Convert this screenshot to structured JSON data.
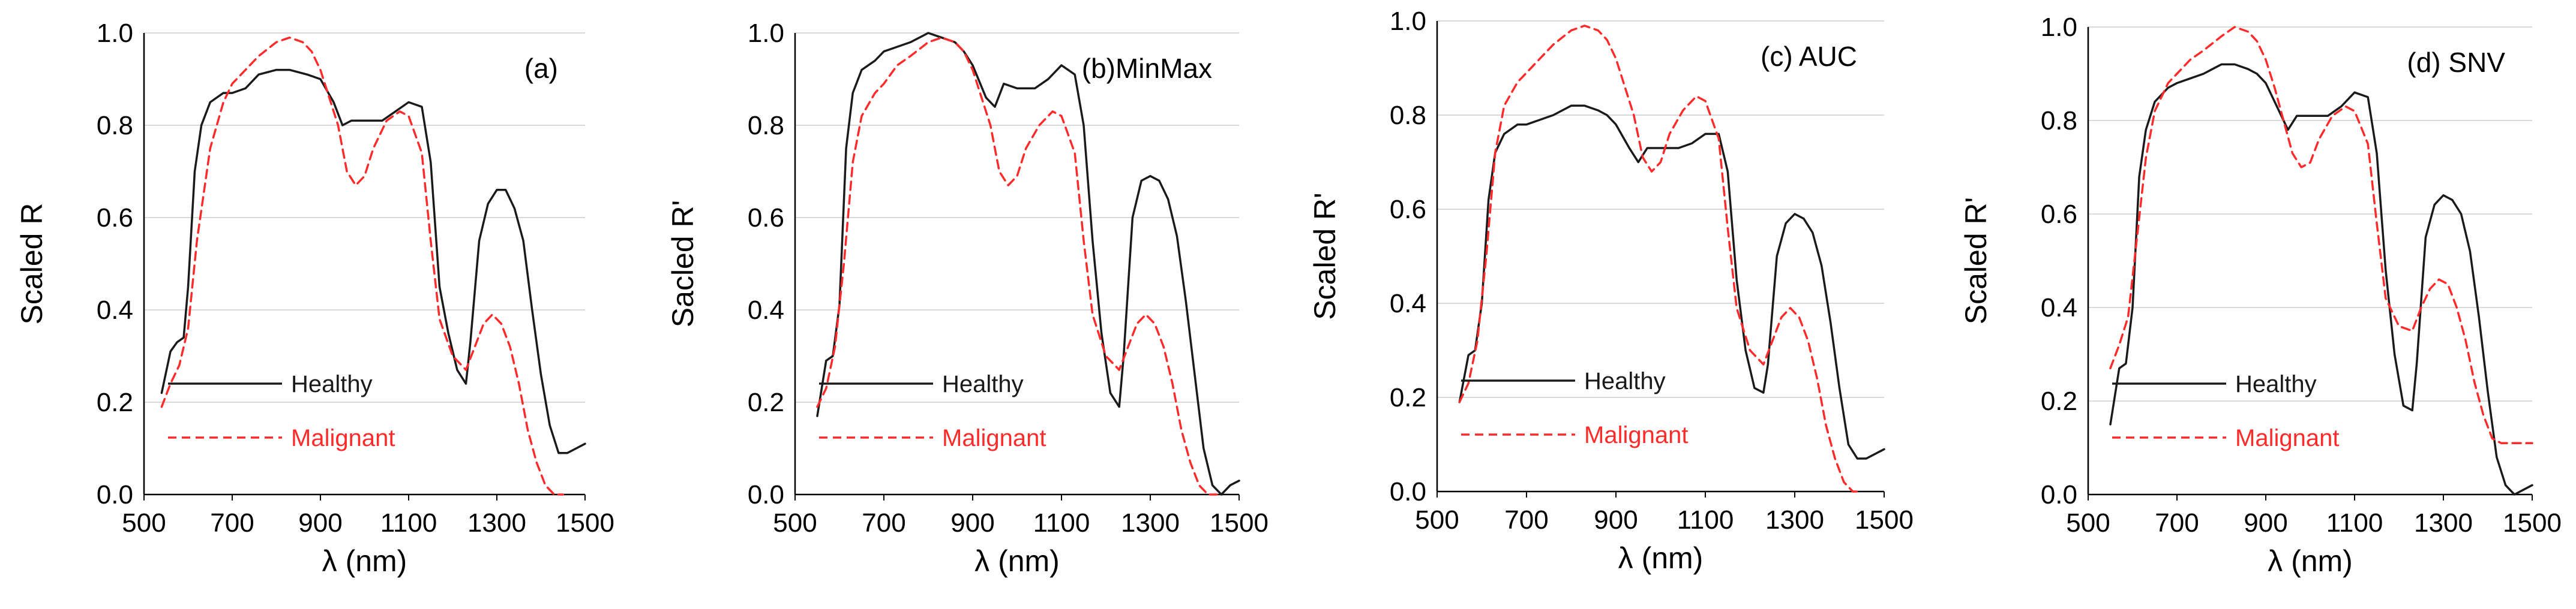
{
  "colors": {
    "healthy": "#1a1a1a",
    "malignant": "#ff2a2a",
    "axis": "#000000",
    "grid": "#d9d9d9"
  },
  "chart_data": [
    {
      "type": "line",
      "panel_label": "(a)",
      "xlabel": "λ (nm)",
      "ylabel": "Scaled R",
      "xlim": [
        500,
        1500
      ],
      "ylim": [
        0,
        1.0
      ],
      "xticks": [
        "500",
        "700",
        "900",
        "1100",
        "1300",
        "1500"
      ],
      "yticks": [
        "0.0",
        "0.2",
        "0.4",
        "0.6",
        "0.8",
        "1.0"
      ],
      "legend": {
        "healthy": "Healthy",
        "malignant": "Malignant",
        "placement": "bottom-left"
      },
      "series": [
        {
          "name": "Healthy",
          "style": "solid",
          "x": [
            540,
            560,
            575,
            590,
            600,
            615,
            630,
            650,
            680,
            700,
            730,
            760,
            800,
            830,
            870,
            900,
            930,
            950,
            970,
            1000,
            1040,
            1070,
            1100,
            1130,
            1150,
            1170,
            1190,
            1210,
            1230,
            1240,
            1260,
            1280,
            1300,
            1320,
            1340,
            1360,
            1380,
            1400,
            1420,
            1440,
            1460,
            1480,
            1500
          ],
          "y": [
            0.22,
            0.31,
            0.33,
            0.34,
            0.45,
            0.7,
            0.8,
            0.85,
            0.87,
            0.87,
            0.88,
            0.91,
            0.92,
            0.92,
            0.91,
            0.9,
            0.85,
            0.8,
            0.81,
            0.81,
            0.81,
            0.83,
            0.85,
            0.84,
            0.72,
            0.45,
            0.35,
            0.27,
            0.24,
            0.33,
            0.55,
            0.63,
            0.66,
            0.66,
            0.62,
            0.55,
            0.4,
            0.26,
            0.15,
            0.09,
            0.09,
            0.1,
            0.11
          ]
        },
        {
          "name": "Malignant",
          "style": "dashed",
          "x": [
            540,
            560,
            580,
            600,
            620,
            650,
            680,
            700,
            730,
            760,
            800,
            830,
            860,
            880,
            900,
            920,
            940,
            960,
            980,
            1000,
            1020,
            1050,
            1080,
            1100,
            1130,
            1150,
            1170,
            1200,
            1230,
            1250,
            1270,
            1290,
            1310,
            1330,
            1350,
            1370,
            1390,
            1410,
            1430,
            1450
          ],
          "y": [
            0.19,
            0.24,
            0.28,
            0.36,
            0.55,
            0.75,
            0.85,
            0.89,
            0.92,
            0.95,
            0.98,
            0.99,
            0.98,
            0.96,
            0.92,
            0.86,
            0.8,
            0.7,
            0.67,
            0.69,
            0.75,
            0.81,
            0.83,
            0.82,
            0.74,
            0.55,
            0.38,
            0.3,
            0.27,
            0.32,
            0.37,
            0.39,
            0.37,
            0.32,
            0.24,
            0.14,
            0.07,
            0.02,
            0.0,
            0.0
          ]
        }
      ]
    },
    {
      "type": "line",
      "panel_label": "(b)MinMax",
      "xlabel": "λ (nm)",
      "ylabel": "Sacled R'",
      "xlim": [
        500,
        1500
      ],
      "ylim": [
        0,
        1.0
      ],
      "xticks": [
        "500",
        "700",
        "900",
        "1100",
        "1300",
        "1500"
      ],
      "yticks": [
        "0.0",
        "0.2",
        "0.4",
        "0.6",
        "0.8",
        "1.0"
      ],
      "legend": {
        "healthy": "Healthy",
        "malignant": "Malignant",
        "placement": "bottom-left"
      },
      "series": [
        {
          "name": "Healthy",
          "style": "solid",
          "x": [
            550,
            570,
            585,
            600,
            615,
            630,
            650,
            680,
            700,
            730,
            760,
            800,
            830,
            860,
            880,
            900,
            930,
            950,
            970,
            1000,
            1040,
            1070,
            1100,
            1130,
            1150,
            1170,
            1190,
            1210,
            1230,
            1240,
            1260,
            1280,
            1300,
            1320,
            1340,
            1360,
            1380,
            1400,
            1420,
            1440,
            1460,
            1480,
            1500
          ],
          "y": [
            0.17,
            0.29,
            0.3,
            0.41,
            0.75,
            0.87,
            0.92,
            0.94,
            0.96,
            0.97,
            0.98,
            1.0,
            0.99,
            0.98,
            0.96,
            0.93,
            0.86,
            0.84,
            0.89,
            0.88,
            0.88,
            0.9,
            0.93,
            0.91,
            0.8,
            0.55,
            0.35,
            0.22,
            0.19,
            0.3,
            0.6,
            0.68,
            0.69,
            0.68,
            0.64,
            0.56,
            0.42,
            0.26,
            0.1,
            0.02,
            0.0,
            0.02,
            0.03
          ]
        },
        {
          "name": "Malignant",
          "style": "dashed",
          "x": [
            550,
            570,
            590,
            610,
            630,
            650,
            680,
            700,
            730,
            760,
            800,
            830,
            860,
            880,
            900,
            920,
            940,
            960,
            980,
            1000,
            1020,
            1050,
            1080,
            1100,
            1130,
            1150,
            1170,
            1200,
            1230,
            1250,
            1270,
            1290,
            1310,
            1330,
            1350,
            1370,
            1390,
            1410,
            1430,
            1450
          ],
          "y": [
            0.19,
            0.23,
            0.32,
            0.5,
            0.72,
            0.82,
            0.87,
            0.89,
            0.93,
            0.95,
            0.98,
            0.99,
            0.98,
            0.96,
            0.92,
            0.86,
            0.8,
            0.7,
            0.67,
            0.69,
            0.75,
            0.8,
            0.83,
            0.82,
            0.74,
            0.55,
            0.39,
            0.3,
            0.27,
            0.32,
            0.37,
            0.39,
            0.37,
            0.32,
            0.24,
            0.14,
            0.07,
            0.02,
            0.0,
            0.0
          ]
        }
      ]
    },
    {
      "type": "line",
      "panel_label": "(c) AUC",
      "xlabel": "λ (nm)",
      "ylabel": "Scaled R'",
      "xlim": [
        500,
        1500
      ],
      "ylim": [
        0,
        1.0
      ],
      "xticks": [
        "500",
        "700",
        "900",
        "1100",
        "1300",
        "1500"
      ],
      "yticks": [
        "0.0",
        "0.2",
        "0.4",
        "0.6",
        "0.8",
        "1.0"
      ],
      "legend": {
        "healthy": "Healthy",
        "malignant": "Malignant",
        "placement": "bottom-left"
      },
      "series": [
        {
          "name": "Healthy",
          "style": "solid",
          "x": [
            550,
            570,
            585,
            600,
            615,
            630,
            650,
            680,
            700,
            730,
            760,
            800,
            830,
            860,
            880,
            900,
            930,
            950,
            970,
            1000,
            1040,
            1070,
            1100,
            1130,
            1150,
            1170,
            1190,
            1210,
            1230,
            1240,
            1260,
            1280,
            1300,
            1320,
            1340,
            1360,
            1380,
            1400,
            1420,
            1440,
            1460,
            1480,
            1500
          ],
          "y": [
            0.19,
            0.29,
            0.3,
            0.4,
            0.62,
            0.72,
            0.76,
            0.78,
            0.78,
            0.79,
            0.8,
            0.82,
            0.82,
            0.81,
            0.8,
            0.78,
            0.73,
            0.7,
            0.73,
            0.73,
            0.73,
            0.74,
            0.76,
            0.76,
            0.68,
            0.45,
            0.3,
            0.22,
            0.21,
            0.27,
            0.5,
            0.57,
            0.59,
            0.58,
            0.55,
            0.48,
            0.36,
            0.22,
            0.1,
            0.07,
            0.07,
            0.08,
            0.09
          ]
        },
        {
          "name": "Malignant",
          "style": "dashed",
          "x": [
            550,
            570,
            590,
            610,
            630,
            650,
            680,
            700,
            730,
            760,
            800,
            830,
            860,
            880,
            900,
            920,
            940,
            960,
            980,
            1000,
            1020,
            1050,
            1080,
            1100,
            1130,
            1150,
            1170,
            1200,
            1230,
            1250,
            1270,
            1290,
            1310,
            1330,
            1350,
            1370,
            1390,
            1410,
            1430,
            1450
          ],
          "y": [
            0.19,
            0.23,
            0.32,
            0.5,
            0.72,
            0.82,
            0.87,
            0.89,
            0.92,
            0.95,
            0.98,
            0.99,
            0.98,
            0.96,
            0.92,
            0.86,
            0.8,
            0.71,
            0.68,
            0.7,
            0.76,
            0.81,
            0.84,
            0.83,
            0.75,
            0.56,
            0.39,
            0.3,
            0.27,
            0.32,
            0.37,
            0.39,
            0.37,
            0.32,
            0.24,
            0.14,
            0.07,
            0.02,
            0.0,
            0.0
          ]
        }
      ]
    },
    {
      "type": "line",
      "panel_label": "(d) SNV",
      "xlabel": "λ (nm)",
      "ylabel": "Scaled R'",
      "xlim": [
        500,
        1500
      ],
      "ylim": [
        0,
        1.0
      ],
      "xticks": [
        "500",
        "700",
        "900",
        "1100",
        "1300",
        "1500"
      ],
      "yticks": [
        "0.0",
        "0.2",
        "0.4",
        "0.6",
        "0.8",
        "1.0"
      ],
      "legend": {
        "healthy": "Healthy",
        "malignant": "Malignant",
        "placement": "bottom-left"
      },
      "series": [
        {
          "name": "Healthy",
          "style": "solid",
          "x": [
            550,
            570,
            585,
            600,
            615,
            630,
            650,
            680,
            700,
            730,
            760,
            800,
            830,
            860,
            880,
            900,
            930,
            950,
            970,
            1000,
            1040,
            1070,
            1100,
            1130,
            1150,
            1170,
            1190,
            1210,
            1230,
            1240,
            1260,
            1280,
            1300,
            1320,
            1340,
            1360,
            1380,
            1400,
            1420,
            1440,
            1460,
            1480,
            1500
          ],
          "y": [
            0.15,
            0.27,
            0.28,
            0.4,
            0.68,
            0.78,
            0.84,
            0.87,
            0.88,
            0.89,
            0.9,
            0.92,
            0.92,
            0.91,
            0.9,
            0.88,
            0.82,
            0.78,
            0.81,
            0.81,
            0.81,
            0.83,
            0.86,
            0.85,
            0.73,
            0.48,
            0.3,
            0.19,
            0.18,
            0.28,
            0.55,
            0.62,
            0.64,
            0.63,
            0.6,
            0.52,
            0.38,
            0.22,
            0.08,
            0.02,
            0.0,
            0.01,
            0.02
          ]
        },
        {
          "name": "Malignant",
          "style": "dashed",
          "x": [
            550,
            570,
            590,
            610,
            630,
            650,
            680,
            700,
            730,
            760,
            800,
            830,
            860,
            880,
            900,
            920,
            940,
            960,
            980,
            1000,
            1020,
            1050,
            1080,
            1100,
            1130,
            1150,
            1170,
            1200,
            1230,
            1250,
            1270,
            1290,
            1310,
            1330,
            1350,
            1370,
            1390,
            1410,
            1430,
            1450,
            1470,
            1500
          ],
          "y": [
            0.27,
            0.32,
            0.38,
            0.55,
            0.72,
            0.82,
            0.88,
            0.9,
            0.93,
            0.95,
            0.98,
            1.0,
            0.99,
            0.97,
            0.93,
            0.87,
            0.8,
            0.73,
            0.7,
            0.71,
            0.76,
            0.81,
            0.83,
            0.82,
            0.75,
            0.58,
            0.42,
            0.36,
            0.35,
            0.4,
            0.44,
            0.46,
            0.45,
            0.4,
            0.33,
            0.24,
            0.17,
            0.12,
            0.11,
            0.11,
            0.11,
            0.11
          ]
        }
      ]
    }
  ]
}
